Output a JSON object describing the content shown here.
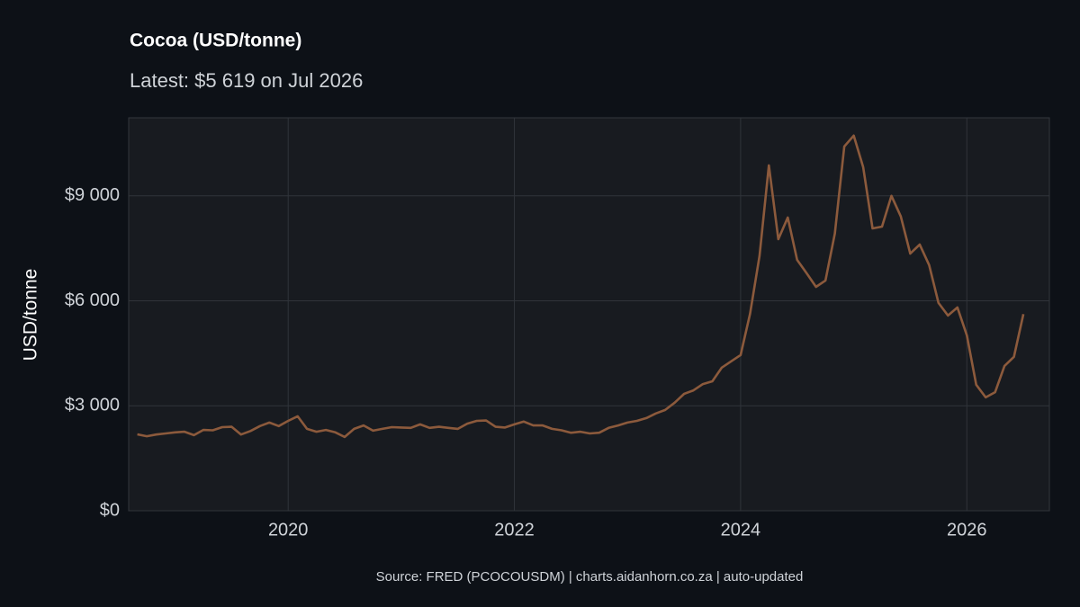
{
  "chart_data": {
    "type": "line",
    "title": "Cocoa (USD/tonne)",
    "subtitle": "Latest: $5 619 on Jul 2026",
    "y_label": "USD/tonne",
    "caption": "Source: FRED (PCOCOUSDM) | charts.aidanhorn.co.za | auto-updated",
    "x": [
      "2018-09",
      "2018-10",
      "2018-11",
      "2018-12",
      "2019-01",
      "2019-02",
      "2019-03",
      "2019-04",
      "2019-05",
      "2019-06",
      "2019-07",
      "2019-08",
      "2019-09",
      "2019-10",
      "2019-11",
      "2019-12",
      "2020-01",
      "2020-02",
      "2020-03",
      "2020-04",
      "2020-05",
      "2020-06",
      "2020-07",
      "2020-08",
      "2020-09",
      "2020-10",
      "2020-11",
      "2020-12",
      "2021-01",
      "2021-02",
      "2021-03",
      "2021-04",
      "2021-05",
      "2021-06",
      "2021-07",
      "2021-08",
      "2021-09",
      "2021-10",
      "2021-11",
      "2021-12",
      "2022-01",
      "2022-02",
      "2022-03",
      "2022-04",
      "2022-05",
      "2022-06",
      "2022-07",
      "2022-08",
      "2022-09",
      "2022-10",
      "2022-11",
      "2022-12",
      "2023-01",
      "2023-02",
      "2023-03",
      "2023-04",
      "2023-05",
      "2023-06",
      "2023-07",
      "2023-08",
      "2023-09",
      "2023-10",
      "2023-11",
      "2023-12",
      "2024-01",
      "2024-02",
      "2024-03",
      "2024-04",
      "2024-05",
      "2024-06",
      "2024-07",
      "2024-08",
      "2024-09",
      "2024-10",
      "2024-11",
      "2024-12",
      "2025-01",
      "2025-02",
      "2025-03",
      "2025-04",
      "2025-05",
      "2025-06",
      "2025-07",
      "2025-08",
      "2025-09",
      "2025-10",
      "2025-11",
      "2025-12",
      "2026-01",
      "2026-02",
      "2026-03",
      "2026-04",
      "2026-05",
      "2026-06",
      "2026-07"
    ],
    "series": [
      {
        "name": "Cocoa",
        "color": "#8c5a3c",
        "values": [
          2185,
          2130,
          2180,
          2210,
          2240,
          2260,
          2160,
          2310,
          2300,
          2390,
          2400,
          2180,
          2280,
          2420,
          2520,
          2420,
          2570,
          2700,
          2340,
          2260,
          2310,
          2240,
          2110,
          2340,
          2440,
          2290,
          2340,
          2390,
          2380,
          2370,
          2470,
          2370,
          2400,
          2370,
          2340,
          2490,
          2570,
          2580,
          2400,
          2380,
          2470,
          2550,
          2440,
          2440,
          2340,
          2300,
          2230,
          2260,
          2210,
          2230,
          2370,
          2440,
          2520,
          2570,
          2650,
          2780,
          2880,
          3090,
          3340,
          3440,
          3620,
          3700,
          4090,
          4270,
          4450,
          5630,
          7280,
          9870,
          7760,
          8380,
          7170,
          6790,
          6400,
          6580,
          7920,
          10410,
          10720,
          9820,
          8070,
          8120,
          9000,
          8410,
          7350,
          7610,
          7020,
          5940,
          5580,
          5810,
          5010,
          3600,
          3240,
          3390,
          4140,
          4400,
          5619
        ]
      }
    ],
    "xlim": [
      2018.59,
      2026.73
    ],
    "xticks": [
      2020,
      2022,
      2024,
      2026
    ],
    "ylim": [
      0,
      11230
    ],
    "yticks": [
      {
        "value": 0,
        "label": "$0"
      },
      {
        "value": 3000,
        "label": "$3 000"
      },
      {
        "value": 6000,
        "label": "$6 000"
      },
      {
        "value": 9000,
        "label": "$9 000"
      }
    ],
    "grid": true
  }
}
